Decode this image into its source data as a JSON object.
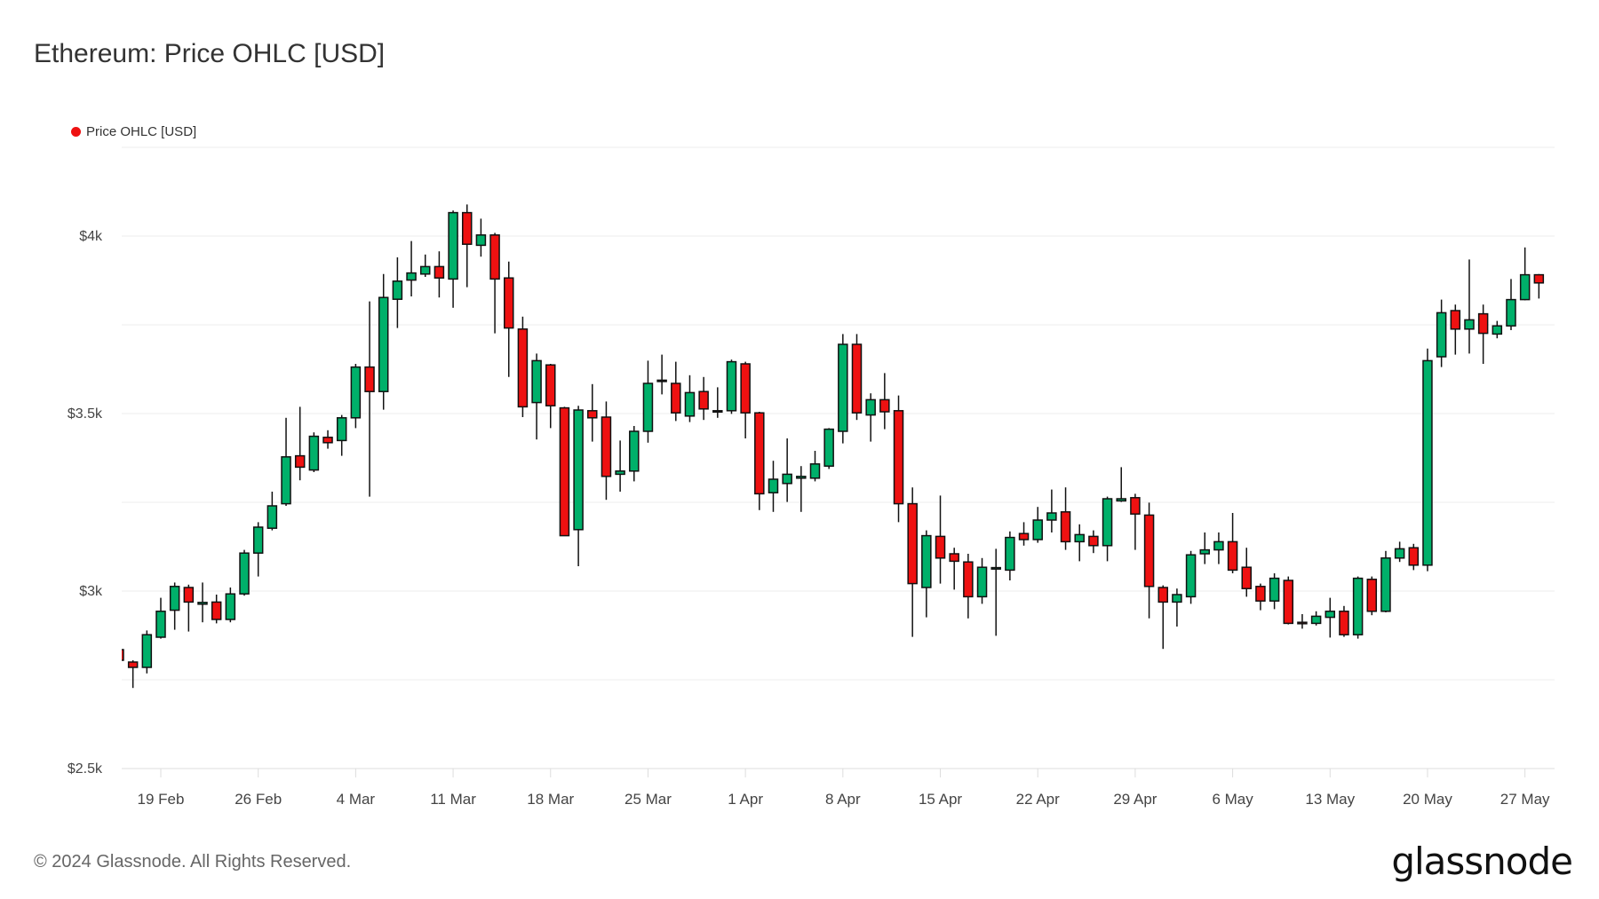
{
  "title": "Ethereum: Price OHLC [USD]",
  "footer": "© 2024 Glassnode. All Rights Reserved.",
  "logo_text": "glassnode",
  "colors": {
    "up": "#00b06a",
    "down": "#ee1111",
    "legend": "#ee1111"
  },
  "chart_data": {
    "type": "candlestick",
    "title": "Ethereum: Price OHLC [USD]",
    "legend": {
      "entries": [
        "Price OHLC [USD]"
      ],
      "placement": "top-left"
    },
    "grid": true,
    "ylim": [
      2500,
      4250
    ],
    "y_ticks": [
      {
        "value": 2500,
        "label": "$2.5k"
      },
      {
        "value": 3000,
        "label": "$3k"
      },
      {
        "value": 3500,
        "label": "$3.5k"
      },
      {
        "value": 4000,
        "label": "$4k"
      }
    ],
    "x_ticks": [
      {
        "date": "2024-02-19",
        "label": "19 Feb"
      },
      {
        "date": "2024-02-26",
        "label": "26 Feb"
      },
      {
        "date": "2024-03-04",
        "label": "4 Mar"
      },
      {
        "date": "2024-03-11",
        "label": "11 Mar"
      },
      {
        "date": "2024-03-18",
        "label": "18 Mar"
      },
      {
        "date": "2024-03-25",
        "label": "25 Mar"
      },
      {
        "date": "2024-04-01",
        "label": "1 Apr"
      },
      {
        "date": "2024-04-08",
        "label": "8 Apr"
      },
      {
        "date": "2024-04-15",
        "label": "15 Apr"
      },
      {
        "date": "2024-04-22",
        "label": "22 Apr"
      },
      {
        "date": "2024-04-29",
        "label": "29 Apr"
      },
      {
        "date": "2024-05-06",
        "label": "6 May"
      },
      {
        "date": "2024-05-13",
        "label": "13 May"
      },
      {
        "date": "2024-05-20",
        "label": "20 May"
      },
      {
        "date": "2024-05-27",
        "label": "27 May"
      }
    ],
    "columns": [
      "date",
      "open",
      "high",
      "low",
      "close"
    ],
    "series": [
      [
        "2024-02-16",
        2835,
        2840,
        2800,
        2805
      ],
      [
        "2024-02-17",
        2800,
        2805,
        2727,
        2785
      ],
      [
        "2024-02-18",
        2785,
        2889,
        2768,
        2877
      ],
      [
        "2024-02-19",
        2870,
        2981,
        2866,
        2943
      ],
      [
        "2024-02-20",
        2946,
        3024,
        2891,
        3013
      ],
      [
        "2024-02-21",
        3010,
        3018,
        2886,
        2969
      ],
      [
        "2024-02-22",
        2963,
        3024,
        2912,
        2968
      ],
      [
        "2024-02-23",
        2969,
        2990,
        2909,
        2920
      ],
      [
        "2024-02-24",
        2920,
        3010,
        2912,
        2992
      ],
      [
        "2024-02-25",
        2992,
        3116,
        2987,
        3107
      ],
      [
        "2024-02-26",
        3107,
        3194,
        3041,
        3180
      ],
      [
        "2024-02-27",
        3177,
        3280,
        3171,
        3240
      ],
      [
        "2024-02-28",
        3246,
        3488,
        3240,
        3378
      ],
      [
        "2024-02-29",
        3381,
        3519,
        3312,
        3349
      ],
      [
        "2024-03-01",
        3341,
        3447,
        3335,
        3436
      ],
      [
        "2024-03-02",
        3433,
        3453,
        3401,
        3418
      ],
      [
        "2024-03-03",
        3424,
        3496,
        3381,
        3488
      ],
      [
        "2024-03-04",
        3488,
        3640,
        3459,
        3631
      ],
      [
        "2024-03-05",
        3631,
        3816,
        3266,
        3562
      ],
      [
        "2024-03-06",
        3562,
        3893,
        3511,
        3827
      ],
      [
        "2024-03-07",
        3822,
        3940,
        3741,
        3873
      ],
      [
        "2024-03-08",
        3876,
        3986,
        3830,
        3896
      ],
      [
        "2024-03-09",
        3893,
        3948,
        3885,
        3914
      ],
      [
        "2024-03-10",
        3914,
        3957,
        3827,
        3882
      ],
      [
        "2024-03-11",
        3879,
        4072,
        3798,
        4066
      ],
      [
        "2024-03-12",
        4066,
        4089,
        3856,
        3977
      ],
      [
        "2024-03-13",
        3974,
        4049,
        3942,
        4003
      ],
      [
        "2024-03-14",
        4003,
        4009,
        3726,
        3879
      ],
      [
        "2024-03-15",
        3882,
        3928,
        3603,
        3741
      ],
      [
        "2024-03-16",
        3738,
        3773,
        3490,
        3519
      ],
      [
        "2024-03-17",
        3531,
        3669,
        3427,
        3649
      ],
      [
        "2024-03-18",
        3637,
        3640,
        3459,
        3522
      ],
      [
        "2024-03-19",
        3516,
        3519,
        3156,
        3156
      ],
      [
        "2024-03-20",
        3173,
        3522,
        3070,
        3510
      ],
      [
        "2024-03-21",
        3508,
        3583,
        3421,
        3488
      ],
      [
        "2024-03-22",
        3490,
        3534,
        3257,
        3323
      ],
      [
        "2024-03-23",
        3329,
        3424,
        3280,
        3338
      ],
      [
        "2024-03-24",
        3338,
        3465,
        3309,
        3450
      ],
      [
        "2024-03-25",
        3450,
        3649,
        3418,
        3585
      ],
      [
        "2024-03-26",
        3591,
        3666,
        3554,
        3594
      ],
      [
        "2024-03-27",
        3585,
        3646,
        3479,
        3502
      ],
      [
        "2024-03-28",
        3493,
        3608,
        3476,
        3559
      ],
      [
        "2024-03-29",
        3562,
        3603,
        3482,
        3513
      ],
      [
        "2024-03-30",
        3508,
        3574,
        3488,
        3505
      ],
      [
        "2024-03-31",
        3508,
        3652,
        3499,
        3646
      ],
      [
        "2024-04-01",
        3640,
        3646,
        3430,
        3502
      ],
      [
        "2024-04-02",
        3502,
        3505,
        3228,
        3274
      ],
      [
        "2024-04-03",
        3277,
        3367,
        3223,
        3315
      ],
      [
        "2024-04-04",
        3303,
        3430,
        3251,
        3329
      ],
      [
        "2024-04-05",
        3318,
        3352,
        3223,
        3323
      ],
      [
        "2024-04-06",
        3318,
        3395,
        3309,
        3358
      ],
      [
        "2024-04-07",
        3352,
        3459,
        3344,
        3456
      ],
      [
        "2024-04-08",
        3450,
        3724,
        3416,
        3695
      ],
      [
        "2024-04-09",
        3695,
        3724,
        3482,
        3502
      ],
      [
        "2024-04-10",
        3496,
        3557,
        3421,
        3539
      ],
      [
        "2024-04-11",
        3539,
        3614,
        3456,
        3505
      ],
      [
        "2024-04-12",
        3508,
        3551,
        3194,
        3246
      ],
      [
        "2024-04-13",
        3246,
        3292,
        2871,
        3021
      ],
      [
        "2024-04-14",
        3010,
        3171,
        2926,
        3156
      ],
      [
        "2024-04-15",
        3154,
        3269,
        3021,
        3093
      ],
      [
        "2024-04-16",
        3105,
        3122,
        3004,
        3084
      ],
      [
        "2024-04-17",
        3082,
        3105,
        2923,
        2984
      ],
      [
        "2024-04-18",
        2984,
        3093,
        2964,
        3067
      ],
      [
        "2024-04-19",
        3062,
        3119,
        2874,
        3066
      ],
      [
        "2024-04-20",
        3059,
        3168,
        3030,
        3151
      ],
      [
        "2024-04-21",
        3162,
        3194,
        3128,
        3145
      ],
      [
        "2024-04-22",
        3145,
        3237,
        3136,
        3200
      ],
      [
        "2024-04-23",
        3200,
        3286,
        3165,
        3220
      ],
      [
        "2024-04-24",
        3223,
        3292,
        3116,
        3139
      ],
      [
        "2024-04-25",
        3139,
        3188,
        3084,
        3159
      ],
      [
        "2024-04-26",
        3154,
        3171,
        3107,
        3128
      ],
      [
        "2024-04-27",
        3128,
        3266,
        3084,
        3260
      ],
      [
        "2024-04-28",
        3254,
        3349,
        3251,
        3260
      ],
      [
        "2024-04-29",
        3263,
        3274,
        3116,
        3217
      ],
      [
        "2024-04-30",
        3214,
        3249,
        2923,
        3013
      ],
      [
        "2024-05-01",
        3010,
        3016,
        2837,
        2969
      ],
      [
        "2024-05-02",
        2969,
        3007,
        2900,
        2990
      ],
      [
        "2024-05-03",
        2984,
        3113,
        2964,
        3102
      ],
      [
        "2024-05-04",
        3105,
        3165,
        3076,
        3116
      ],
      [
        "2024-05-05",
        3116,
        3165,
        3076,
        3139
      ],
      [
        "2024-05-06",
        3139,
        3220,
        3050,
        3059
      ],
      [
        "2024-05-07",
        3067,
        3122,
        2984,
        3007
      ],
      [
        "2024-05-08",
        3013,
        3021,
        2946,
        2972
      ],
      [
        "2024-05-09",
        2972,
        3050,
        2949,
        3036
      ],
      [
        "2024-05-10",
        3030,
        3041,
        2906,
        2909
      ],
      [
        "2024-05-11",
        2912,
        2935,
        2894,
        2908
      ],
      [
        "2024-05-12",
        2909,
        2943,
        2903,
        2929
      ],
      [
        "2024-05-13",
        2926,
        2981,
        2869,
        2943
      ],
      [
        "2024-05-14",
        2943,
        2958,
        2871,
        2877
      ],
      [
        "2024-05-15",
        2877,
        3041,
        2866,
        3036
      ],
      [
        "2024-05-16",
        3033,
        3041,
        2932,
        2943
      ],
      [
        "2024-05-17",
        2943,
        3113,
        2940,
        3093
      ],
      [
        "2024-05-18",
        3093,
        3139,
        3082,
        3119
      ],
      [
        "2024-05-19",
        3122,
        3133,
        3059,
        3073
      ],
      [
        "2024-05-20",
        3073,
        3683,
        3056,
        3649
      ],
      [
        "2024-05-21",
        3660,
        3821,
        3631,
        3784
      ],
      [
        "2024-05-22",
        3790,
        3807,
        3666,
        3738
      ],
      [
        "2024-05-23",
        3738,
        3934,
        3669,
        3764
      ],
      [
        "2024-05-24",
        3781,
        3807,
        3640,
        3726
      ],
      [
        "2024-05-25",
        3724,
        3761,
        3712,
        3747
      ],
      [
        "2024-05-26",
        3747,
        3879,
        3735,
        3821
      ],
      [
        "2024-05-27",
        3821,
        3968,
        3819,
        3891
      ],
      [
        "2024-05-28",
        3891,
        3893,
        3824,
        3868
      ]
    ]
  }
}
